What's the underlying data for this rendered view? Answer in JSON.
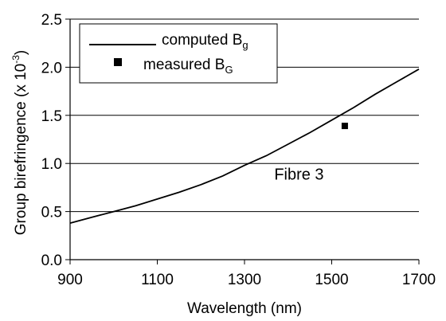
{
  "chart_data": {
    "type": "line",
    "title": "",
    "xlabel": "Wavelength (nm)",
    "ylabel": {
      "main": "Group birefringence (x 10",
      "sup": "-3",
      "close": ")"
    },
    "xlim": [
      900,
      1700
    ],
    "ylim": [
      0,
      2.5
    ],
    "x_ticks": [
      "900",
      "1100",
      "1300",
      "1500",
      "1700"
    ],
    "y_ticks": [
      "0.0",
      "0.5",
      "1.0",
      "1.5",
      "2.0",
      "2.5"
    ],
    "grid": "horizontal",
    "legend_position": "top-left",
    "series": [
      {
        "name": {
          "base": "computed B",
          "sub": "g"
        },
        "kind": "line",
        "color": "#000000",
        "x": [
          900,
          950,
          1000,
          1050,
          1100,
          1150,
          1200,
          1250,
          1300,
          1350,
          1400,
          1450,
          1500,
          1550,
          1600,
          1650,
          1700
        ],
        "y": [
          0.38,
          0.44,
          0.5,
          0.56,
          0.63,
          0.7,
          0.78,
          0.87,
          0.98,
          1.08,
          1.2,
          1.32,
          1.45,
          1.58,
          1.72,
          1.85,
          1.98
        ]
      },
      {
        "name": {
          "base": "measured B",
          "sub": "G"
        },
        "kind": "marker",
        "color": "#000000",
        "x": [
          1530
        ],
        "y": [
          1.39
        ]
      }
    ],
    "annotations": [
      {
        "text": "Fibre 3",
        "x": 1425,
        "y": 0.75
      }
    ]
  }
}
